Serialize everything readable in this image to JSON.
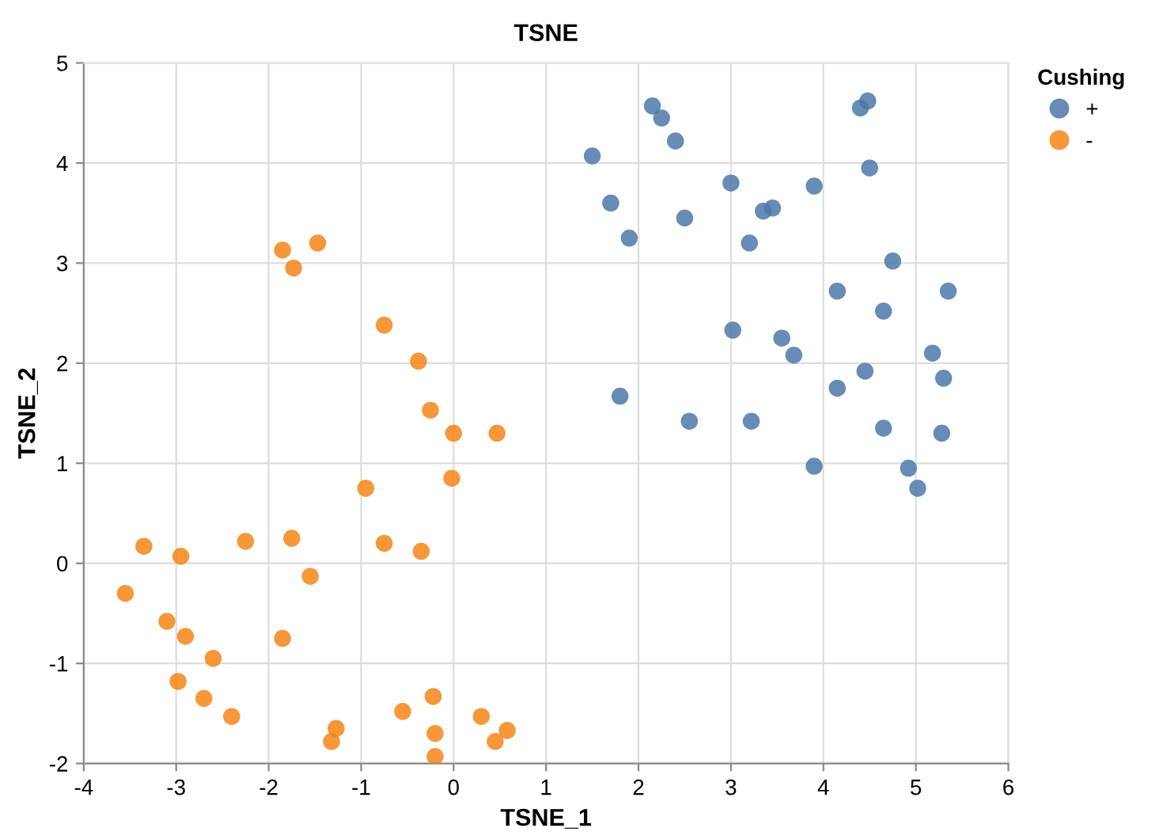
{
  "chart_data": {
    "type": "scatter",
    "title": "TSNE",
    "xlabel": "TSNE_1",
    "ylabel": "TSNE_2",
    "legend_title": "Cushing",
    "legend": "top right",
    "grid": true,
    "marker": "circle",
    "xlim": [
      -4,
      6
    ],
    "xticks": [
      -4,
      -3,
      -2,
      -1,
      0,
      1,
      2,
      3,
      4,
      5,
      6
    ],
    "ylim": [
      -2,
      5
    ],
    "yticks": [
      -2,
      -1,
      0,
      1,
      2,
      3,
      4,
      5
    ],
    "series": [
      {
        "name": "+",
        "color": "#4c78a8",
        "x": [
          1.5,
          2.15,
          2.25,
          2.4,
          4.4,
          4.48,
          4.5,
          1.7,
          1.9,
          2.5,
          3.0,
          3.2,
          3.35,
          3.45,
          3.9,
          4.75,
          4.15,
          4.65,
          5.35,
          3.02,
          3.55,
          3.68,
          5.18,
          5.3,
          4.15,
          4.45,
          1.8,
          2.55,
          3.22,
          4.65,
          5.28,
          3.9,
          4.92,
          5.02
        ],
        "values": [
          4.07,
          4.57,
          4.45,
          4.22,
          4.55,
          4.62,
          3.95,
          3.6,
          3.25,
          3.45,
          3.8,
          3.2,
          3.52,
          3.55,
          3.77,
          3.02,
          2.72,
          2.52,
          2.72,
          2.33,
          2.25,
          2.08,
          2.1,
          1.85,
          1.75,
          1.92,
          1.67,
          1.42,
          1.42,
          1.35,
          1.3,
          0.97,
          0.95,
          0.75
        ]
      },
      {
        "name": "-",
        "color": "#f58518",
        "x": [
          -1.85,
          -1.47,
          -1.73,
          -0.75,
          -0.38,
          -0.25,
          0.0,
          0.47,
          -0.02,
          -0.95,
          -3.35,
          -2.95,
          -2.25,
          -1.75,
          -0.75,
          -0.35,
          -1.55,
          -3.55,
          -3.1,
          -2.9,
          -1.85,
          -2.6,
          -2.98,
          -2.7,
          -2.4,
          -0.55,
          -0.22,
          -1.27,
          -1.32,
          -0.2,
          0.3,
          0.58,
          0.45,
          -0.2
        ],
        "values": [
          3.13,
          3.2,
          2.95,
          2.38,
          2.02,
          1.53,
          1.3,
          1.3,
          0.85,
          0.75,
          0.17,
          0.07,
          0.22,
          0.25,
          0.2,
          0.12,
          -0.13,
          -0.3,
          -0.58,
          -0.73,
          -0.75,
          -0.95,
          -1.18,
          -1.35,
          -1.53,
          -1.48,
          -1.33,
          -1.65,
          -1.78,
          -1.7,
          -1.53,
          -1.67,
          -1.78,
          -1.93
        ]
      }
    ]
  }
}
